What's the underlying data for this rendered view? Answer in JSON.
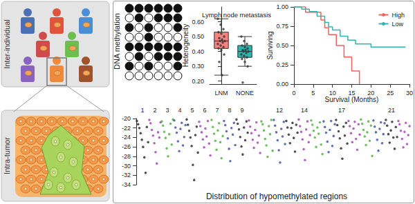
{
  "panels": {
    "inter_label": "Inter-individual",
    "intra_label": "Intra-tumor"
  },
  "methylation": {
    "label": "DNA methylation",
    "grid": [
      [
        1,
        1,
        1,
        1,
        1,
        1
      ],
      [
        0,
        1,
        0,
        1,
        1,
        1
      ],
      [
        1,
        0,
        1,
        0,
        0,
        1
      ],
      [
        0,
        0,
        1,
        0,
        0,
        0
      ],
      [
        1,
        1,
        1,
        1,
        1,
        1
      ],
      [
        0,
        1,
        0,
        1,
        1,
        1
      ],
      [
        1,
        0,
        1,
        0,
        0,
        1
      ],
      [
        0,
        0,
        0,
        0,
        0,
        0
      ]
    ]
  },
  "chart_data": [
    {
      "type": "boxplot",
      "title": "Lymph node metastasis",
      "y_label": "Heterogeneity",
      "categories": [
        "LNM",
        "NONE"
      ],
      "boxes": [
        [
          0.24,
          0.42,
          0.47,
          0.53,
          0.62
        ],
        [
          0.3,
          0.36,
          0.4,
          0.44,
          0.5
        ]
      ],
      "colors": [
        "#f4837d",
        "#2cb5ad"
      ],
      "points": [
        [
          0.62,
          0.58,
          0.55,
          0.53,
          0.52,
          0.5,
          0.49,
          0.48,
          0.47,
          0.47,
          0.46,
          0.45,
          0.44,
          0.43,
          0.42,
          0.41,
          0.38,
          0.33,
          0.24
        ],
        [
          0.5,
          0.47,
          0.45,
          0.44,
          0.43,
          0.42,
          0.41,
          0.41,
          0.4,
          0.4,
          0.39,
          0.38,
          0.37,
          0.36,
          0.35,
          0.33,
          0.3,
          0.19
        ]
      ],
      "ylim": [
        0.18,
        0.7
      ],
      "yticks": [
        {
          "value": 0.2,
          "label": "0.20"
        },
        {
          "value": 0.3,
          "label": "0.30"
        },
        {
          "value": 0.4,
          "label": "0.40"
        },
        {
          "value": 0.5,
          "label": "0.50"
        },
        {
          "value": 0.6,
          "label": "0.60"
        }
      ]
    },
    {
      "type": "line",
      "line_style": "step",
      "x_label": "Survival (Months)",
      "y_label": "Surviving",
      "legend": "top-right",
      "series": [
        {
          "name": "High",
          "color": "#f0625a",
          "x": [
            0,
            3,
            7,
            8,
            9,
            11,
            13,
            15,
            17
          ],
          "values": [
            1,
            0.93,
            0.83,
            0.73,
            0.64,
            0.5,
            0.35,
            0.17,
            0
          ]
        },
        {
          "name": "Low",
          "color": "#2cb5b0",
          "x": [
            0,
            2,
            4,
            6,
            8,
            9,
            10,
            12,
            14,
            16,
            20,
            29
          ],
          "values": [
            1,
            0.97,
            0.94,
            0.88,
            0.8,
            0.74,
            0.7,
            0.62,
            0.57,
            0.52,
            0.48,
            0.48
          ]
        }
      ],
      "xlim": [
        0,
        30
      ],
      "xticks": [
        0,
        5,
        10,
        15,
        20,
        25,
        30
      ],
      "ylim": [
        0,
        1
      ],
      "yticks": [
        {
          "value": 0,
          "label": "0.00"
        },
        {
          "value": 0.25,
          "label": "0.25"
        },
        {
          "value": 0.5,
          "label": "0.50"
        },
        {
          "value": 0.75,
          "label": "0.75"
        },
        {
          "value": 1,
          "label": "1.00"
        }
      ]
    },
    {
      "type": "scatter",
      "x_label": "Distribution of hypomethylated regions",
      "ylim": [
        -34,
        -20
      ],
      "yticks": [
        -34,
        -32,
        -30,
        -28,
        -26,
        -24,
        -22,
        -20
      ],
      "chromosomes": [
        {
          "label": "1",
          "color": "#222222",
          "values": [
            -20.5,
            -21.2,
            -22.0,
            -23.1,
            -24.5,
            -26.0,
            -28.2,
            -31.5,
            -21.8,
            -25.0
          ]
        },
        {
          "label": "2",
          "color": "#a040b0",
          "values": [
            -20.3,
            -21.0,
            -22.4,
            -23.6,
            -25.2,
            -27.1,
            -29.5,
            -22.9,
            -24.0,
            -20.8
          ]
        },
        {
          "label": "3",
          "color": "#4caf3a",
          "values": [
            -20.6,
            -21.5,
            -22.8,
            -24.1,
            -26.3,
            -28.0,
            -23.3,
            -21.1,
            -25.5,
            -20.2
          ]
        },
        {
          "label": "4",
          "color": "#3a4fa0",
          "values": [
            -20.4,
            -21.9,
            -23.0,
            -24.8,
            -26.9,
            -22.2,
            -20.9,
            -25.7,
            -23.9,
            -21.4
          ]
        },
        {
          "label": "5",
          "color": "#222222",
          "values": [
            -20.2,
            -21.3,
            -22.6,
            -24.0,
            -25.8,
            -29.8,
            -33.0,
            -23.5,
            -21.7,
            -27.2
          ]
        },
        {
          "label": "6",
          "color": "#a040b0",
          "values": [
            -20.7,
            -21.6,
            -22.9,
            -24.4,
            -26.1,
            -22.1,
            -23.8,
            -20.5,
            -25.3,
            -27.8
          ]
        },
        {
          "label": "7",
          "color": "#4caf3a",
          "values": [
            -20.3,
            -21.8,
            -23.2,
            -24.7,
            -26.6,
            -22.5,
            -21.0,
            -25.0,
            -28.4,
            -23.7
          ]
        },
        {
          "label": "8",
          "color": "#3a4fa0",
          "values": [
            -20.5,
            -21.4,
            -22.7,
            -24.2,
            -26.4,
            -29.0,
            -22.0,
            -23.4,
            -20.9,
            -25.6
          ]
        },
        {
          "label": "9",
          "color": "#222222",
          "values": [
            -20.2,
            -21.1,
            -22.3,
            -23.9,
            -25.9,
            -27.6,
            -21.9,
            -24.6,
            -20.6,
            -23.0
          ]
        },
        {
          "label": null,
          "color": "#a040b0",
          "values": [
            -20.4,
            -21.7,
            -23.1,
            -24.5,
            -26.2,
            -22.4,
            -20.8,
            -25.1,
            -23.6,
            -27.3
          ]
        },
        {
          "label": null,
          "color": "#4caf3a",
          "values": [
            -20.6,
            -21.2,
            -22.5,
            -24.3,
            -25.7,
            -28.1,
            -21.6,
            -23.3,
            -20.3,
            -26.8
          ]
        },
        {
          "label": "12",
          "color": "#3a4fa0",
          "values": [
            -20.3,
            -21.5,
            -22.9,
            -24.6,
            -26.7,
            -29.3,
            -22.2,
            -23.8,
            -20.7,
            -25.4
          ]
        },
        {
          "label": null,
          "color": "#222222",
          "values": [
            -20.5,
            -21.9,
            -23.4,
            -25.2,
            -22.0,
            -20.9,
            -24.1,
            -27.0,
            -21.3,
            -23.0
          ]
        },
        {
          "label": "14",
          "color": "#a040b0",
          "values": [
            -20.2,
            -21.6,
            -22.8,
            -24.4,
            -26.5,
            -28.8,
            -22.3,
            -20.6,
            -25.0,
            -23.5
          ]
        },
        {
          "label": null,
          "color": "#4caf3a",
          "values": [
            -20.4,
            -21.3,
            -22.6,
            -24.0,
            -26.0,
            -21.9,
            -23.2,
            -20.8,
            -25.5,
            -27.5
          ]
        },
        {
          "label": null,
          "color": "#3a4fa0",
          "values": [
            -20.6,
            -21.8,
            -23.0,
            -24.9,
            -27.1,
            -22.4,
            -20.5,
            -25.8,
            -23.7,
            -21.2
          ]
        },
        {
          "label": "17",
          "color": "#222222",
          "values": [
            -20.3,
            -21.4,
            -22.7,
            -24.2,
            -26.3,
            -28.5,
            -21.7,
            -23.6,
            -20.9,
            -25.3
          ]
        },
        {
          "label": null,
          "color": "#a040b0",
          "values": [
            -20.5,
            -21.6,
            -23.1,
            -25.0,
            -22.1,
            -20.7,
            -24.3,
            -26.6,
            -21.2,
            -23.4
          ]
        },
        {
          "label": null,
          "color": "#4caf3a",
          "values": [
            -20.2,
            -21.1,
            -22.4,
            -23.8,
            -25.6,
            -22.9,
            -20.6,
            -24.7,
            -21.5,
            -27.9
          ]
        },
        {
          "label": null,
          "color": "#3a4fa0",
          "values": [
            -20.4,
            -21.7,
            -22.9,
            -24.5,
            -26.8,
            -22.2,
            -20.8,
            -25.2,
            -23.3,
            -21.0
          ]
        },
        {
          "label": "21",
          "color": "#222222",
          "values": [
            -20.3,
            -21.5,
            -23.3,
            -25.1,
            -22.5,
            -20.7,
            -24.0,
            -26.4,
            -21.8,
            -23.9
          ]
        },
        {
          "label": null,
          "color": "#a040b0",
          "values": [
            -20.5,
            -21.2,
            -22.6,
            -24.3,
            -26.1,
            -22.8,
            -20.9,
            -25.4,
            -23.5,
            -21.6
          ]
        }
      ]
    }
  ]
}
